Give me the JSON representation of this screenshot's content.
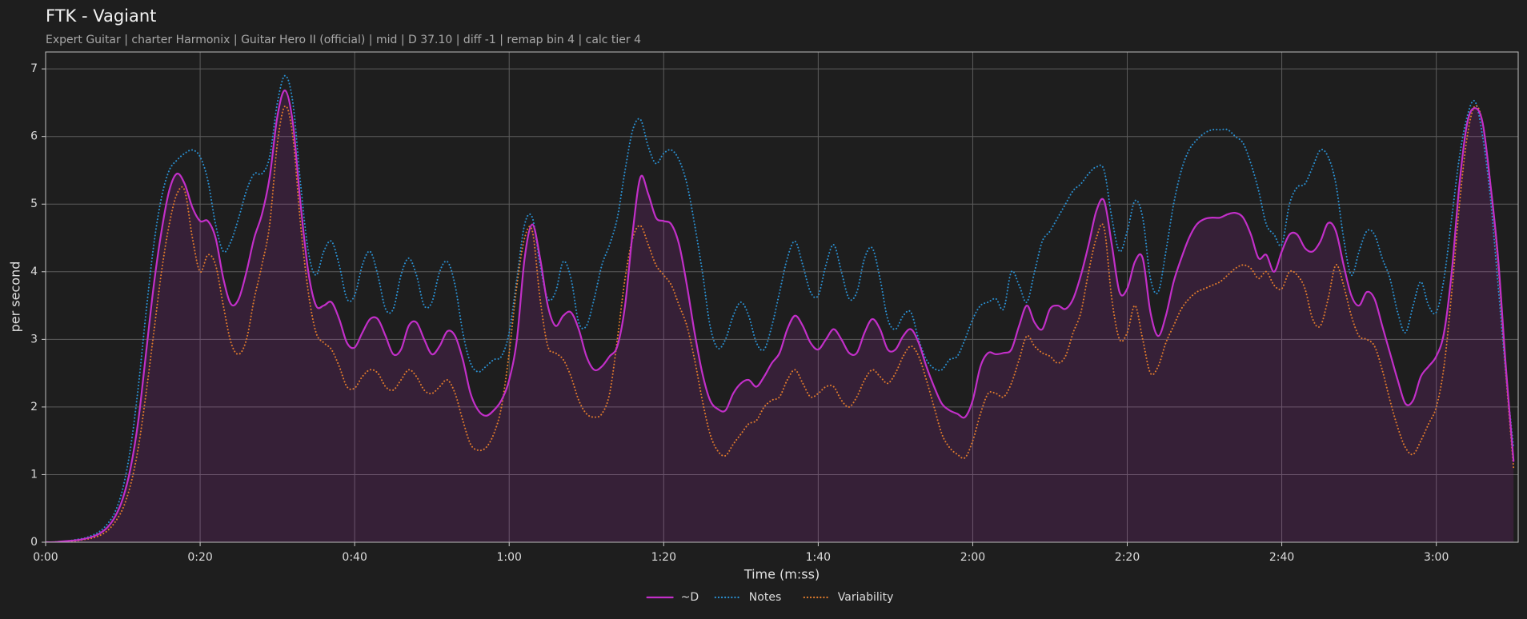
{
  "chart_data": {
    "type": "line",
    "title": "FTK - Vagiant",
    "subtitle": "Expert Guitar  |  charter Harmonix  |  Guitar Hero II (official)  |  mid  |  D 37.10  |  diff -1  |  remap bin 4  |  calc tier 4",
    "xlabel": "Time (m:ss)",
    "ylabel": "per second",
    "xlim": [
      0,
      190.6
    ],
    "ylim": [
      0,
      7.25
    ],
    "xticks": [
      {
        "value": 0,
        "label": "0:00"
      },
      {
        "value": 20,
        "label": "0:20"
      },
      {
        "value": 40,
        "label": "0:40"
      },
      {
        "value": 60,
        "label": "1:00"
      },
      {
        "value": 80,
        "label": "1:20"
      },
      {
        "value": 100,
        "label": "1:40"
      },
      {
        "value": 120,
        "label": "2:00"
      },
      {
        "value": 140,
        "label": "2:20"
      },
      {
        "value": 160,
        "label": "2:40"
      },
      {
        "value": 180,
        "label": "3:00"
      }
    ],
    "yticks": [
      0,
      1,
      2,
      3,
      4,
      5,
      6,
      7
    ],
    "grid": true,
    "x": [
      0,
      1,
      2,
      3,
      4,
      5,
      6,
      7,
      8,
      9,
      10,
      11,
      12,
      13,
      14,
      15,
      16,
      17,
      18,
      19,
      20,
      21,
      22,
      23,
      24,
      25,
      26,
      27,
      28,
      29,
      30,
      31,
      32,
      33,
      34,
      35,
      36,
      37,
      38,
      39,
      40,
      41,
      42,
      43,
      44,
      45,
      46,
      47,
      48,
      49,
      50,
      51,
      52,
      53,
      54,
      55,
      56,
      57,
      58,
      59,
      60,
      61,
      62,
      63,
      64,
      65,
      66,
      67,
      68,
      69,
      70,
      71,
      72,
      73,
      74,
      75,
      76,
      77,
      78,
      79,
      80,
      81,
      82,
      83,
      84,
      85,
      86,
      87,
      88,
      89,
      90,
      91,
      92,
      93,
      94,
      95,
      96,
      97,
      98,
      99,
      100,
      101,
      102,
      103,
      104,
      105,
      106,
      107,
      108,
      109,
      110,
      111,
      112,
      113,
      114,
      115,
      116,
      117,
      118,
      119,
      120,
      121,
      122,
      123,
      124,
      125,
      126,
      127,
      128,
      129,
      130,
      131,
      132,
      133,
      134,
      135,
      136,
      137,
      138,
      139,
      140,
      141,
      142,
      143,
      144,
      145,
      146,
      147,
      148,
      149,
      150,
      151,
      152,
      153,
      154,
      155,
      156,
      157,
      158,
      159,
      160,
      161,
      162,
      163,
      164,
      165,
      166,
      167,
      168,
      169,
      170,
      171,
      172,
      173,
      174,
      175,
      176,
      177,
      178,
      179,
      180,
      181,
      182,
      183,
      184,
      185,
      186,
      187,
      188,
      189,
      190
    ],
    "series": [
      {
        "name": "~D",
        "color": "#c22fc8",
        "style": "solid",
        "fill": true,
        "values": [
          0,
          0,
          0.01,
          0.02,
          0.03,
          0.05,
          0.08,
          0.13,
          0.22,
          0.38,
          0.65,
          1.1,
          1.8,
          2.8,
          3.8,
          4.6,
          5.2,
          5.45,
          5.3,
          4.95,
          4.75,
          4.75,
          4.5,
          3.9,
          3.52,
          3.6,
          4.0,
          4.5,
          4.85,
          5.4,
          6.3,
          6.68,
          6.2,
          5.0,
          4.0,
          3.5,
          3.5,
          3.55,
          3.3,
          2.95,
          2.88,
          3.1,
          3.3,
          3.3,
          3.05,
          2.78,
          2.85,
          3.2,
          3.25,
          3.0,
          2.78,
          2.9,
          3.12,
          3.05,
          2.7,
          2.2,
          1.95,
          1.87,
          1.95,
          2.1,
          2.4,
          3.0,
          4.2,
          4.7,
          4.2,
          3.5,
          3.2,
          3.35,
          3.4,
          3.15,
          2.75,
          2.55,
          2.6,
          2.75,
          2.9,
          3.5,
          4.6,
          5.4,
          5.15,
          4.8,
          4.75,
          4.7,
          4.4,
          3.8,
          3.1,
          2.5,
          2.1,
          1.97,
          1.95,
          2.2,
          2.35,
          2.4,
          2.3,
          2.45,
          2.65,
          2.8,
          3.15,
          3.35,
          3.2,
          2.95,
          2.85,
          3.0,
          3.15,
          3.0,
          2.8,
          2.8,
          3.1,
          3.3,
          3.15,
          2.85,
          2.85,
          3.05,
          3.15,
          2.95,
          2.6,
          2.3,
          2.05,
          1.95,
          1.9,
          1.85,
          2.1,
          2.6,
          2.8,
          2.78,
          2.8,
          2.85,
          3.2,
          3.5,
          3.25,
          3.15,
          3.45,
          3.5,
          3.45,
          3.6,
          3.95,
          4.4,
          4.9,
          5.05,
          4.4,
          3.7,
          3.75,
          4.15,
          4.2,
          3.4,
          3.05,
          3.35,
          3.85,
          4.2,
          4.5,
          4.7,
          4.78,
          4.8,
          4.8,
          4.85,
          4.87,
          4.8,
          4.55,
          4.2,
          4.25,
          4.0,
          4.3,
          4.55,
          4.55,
          4.35,
          4.3,
          4.45,
          4.72,
          4.6,
          4.1,
          3.65,
          3.5,
          3.7,
          3.6,
          3.2,
          2.8,
          2.4,
          2.05,
          2.1,
          2.45,
          2.6,
          2.75,
          3.1,
          4.0,
          5.3,
          6.2,
          6.42,
          6.2,
          5.3,
          4.2,
          2.6,
          1.2
        ]
      },
      {
        "name": "Notes",
        "color": "#2a8fd0",
        "style": "dotted",
        "fill": false,
        "values": [
          0,
          0,
          0.01,
          0.02,
          0.04,
          0.06,
          0.1,
          0.16,
          0.27,
          0.45,
          0.8,
          1.4,
          2.3,
          3.4,
          4.4,
          5.1,
          5.5,
          5.65,
          5.75,
          5.8,
          5.7,
          5.35,
          4.7,
          4.3,
          4.45,
          4.8,
          5.2,
          5.45,
          5.45,
          5.7,
          6.5,
          6.9,
          6.5,
          5.3,
          4.3,
          3.95,
          4.3,
          4.45,
          4.1,
          3.6,
          3.65,
          4.1,
          4.3,
          3.95,
          3.45,
          3.45,
          3.95,
          4.2,
          3.95,
          3.5,
          3.55,
          4.0,
          4.15,
          3.8,
          3.1,
          2.65,
          2.52,
          2.6,
          2.7,
          2.75,
          3.1,
          3.9,
          4.7,
          4.8,
          4.1,
          3.6,
          3.7,
          4.15,
          3.9,
          3.25,
          3.2,
          3.6,
          4.1,
          4.4,
          4.8,
          5.5,
          6.1,
          6.25,
          5.85,
          5.6,
          5.75,
          5.8,
          5.65,
          5.3,
          4.7,
          4.0,
          3.2,
          2.87,
          3.0,
          3.35,
          3.55,
          3.35,
          2.95,
          2.85,
          3.2,
          3.7,
          4.2,
          4.45,
          4.1,
          3.7,
          3.65,
          4.1,
          4.4,
          4.0,
          3.6,
          3.7,
          4.2,
          4.35,
          3.9,
          3.3,
          3.15,
          3.35,
          3.4,
          3.0,
          2.7,
          2.57,
          2.55,
          2.7,
          2.75,
          3.0,
          3.3,
          3.5,
          3.55,
          3.6,
          3.45,
          4.0,
          3.8,
          3.55,
          4.0,
          4.45,
          4.6,
          4.8,
          5.0,
          5.2,
          5.3,
          5.45,
          5.55,
          5.5,
          4.8,
          4.3,
          4.6,
          5.05,
          4.8,
          3.9,
          3.7,
          4.3,
          5.0,
          5.5,
          5.8,
          5.95,
          6.05,
          6.1,
          6.1,
          6.1,
          6.0,
          5.9,
          5.6,
          5.2,
          4.7,
          4.55,
          4.4,
          5.0,
          5.25,
          5.3,
          5.55,
          5.8,
          5.7,
          5.3,
          4.5,
          3.95,
          4.3,
          4.6,
          4.55,
          4.2,
          3.9,
          3.4,
          3.1,
          3.5,
          3.85,
          3.5,
          3.4,
          3.9,
          4.8,
          5.7,
          6.3,
          6.52,
          6.0,
          5.1,
          3.8,
          2.5,
          1.4
        ]
      },
      {
        "name": "Variability",
        "color": "#e07b2c",
        "style": "dotted",
        "fill": false,
        "values": [
          0,
          0,
          0.01,
          0.01,
          0.02,
          0.04,
          0.06,
          0.1,
          0.17,
          0.3,
          0.5,
          0.85,
          1.4,
          2.2,
          3.1,
          4.0,
          4.7,
          5.15,
          5.2,
          4.5,
          4.0,
          4.25,
          4.1,
          3.5,
          2.95,
          2.78,
          3.0,
          3.6,
          4.1,
          4.7,
          5.9,
          6.45,
          6.0,
          4.7,
          3.7,
          3.1,
          2.95,
          2.85,
          2.6,
          2.3,
          2.28,
          2.45,
          2.55,
          2.5,
          2.3,
          2.25,
          2.4,
          2.55,
          2.45,
          2.25,
          2.2,
          2.3,
          2.4,
          2.2,
          1.8,
          1.45,
          1.36,
          1.4,
          1.6,
          2.0,
          2.8,
          3.8,
          4.5,
          4.6,
          3.6,
          2.9,
          2.8,
          2.7,
          2.45,
          2.1,
          1.9,
          1.85,
          1.9,
          2.2,
          3.0,
          3.9,
          4.5,
          4.68,
          4.4,
          4.1,
          3.95,
          3.8,
          3.5,
          3.2,
          2.7,
          2.1,
          1.6,
          1.35,
          1.28,
          1.45,
          1.6,
          1.75,
          1.8,
          2.0,
          2.1,
          2.15,
          2.4,
          2.55,
          2.35,
          2.15,
          2.2,
          2.3,
          2.3,
          2.1,
          2.0,
          2.15,
          2.4,
          2.55,
          2.45,
          2.35,
          2.5,
          2.75,
          2.9,
          2.75,
          2.4,
          2.0,
          1.6,
          1.4,
          1.3,
          1.25,
          1.5,
          1.9,
          2.2,
          2.2,
          2.15,
          2.35,
          2.7,
          3.05,
          2.9,
          2.8,
          2.75,
          2.65,
          2.75,
          3.1,
          3.4,
          4.0,
          4.5,
          4.65,
          3.6,
          3.0,
          3.1,
          3.5,
          3.0,
          2.5,
          2.6,
          2.95,
          3.2,
          3.45,
          3.6,
          3.7,
          3.75,
          3.8,
          3.85,
          3.95,
          4.05,
          4.1,
          4.05,
          3.9,
          4.0,
          3.8,
          3.75,
          4.0,
          3.95,
          3.75,
          3.3,
          3.2,
          3.6,
          4.1,
          3.8,
          3.35,
          3.05,
          3.0,
          2.9,
          2.55,
          2.1,
          1.7,
          1.4,
          1.3,
          1.5,
          1.75,
          2.0,
          2.6,
          3.7,
          5.0,
          6.0,
          6.45,
          6.2,
          5.3,
          4.1,
          2.5,
          1.1
        ]
      }
    ]
  }
}
